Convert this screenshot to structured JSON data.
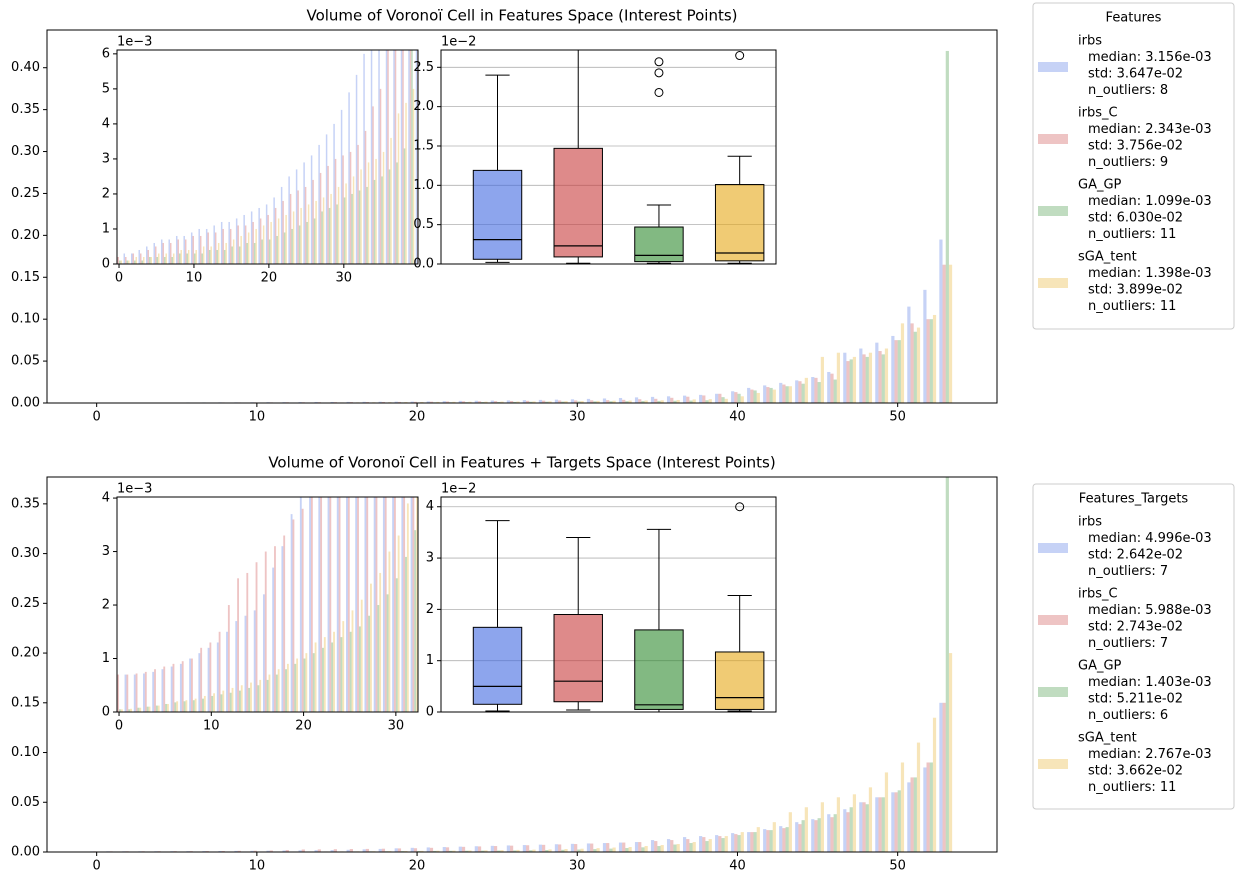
{
  "chart_data": [
    {
      "type": "bar",
      "title": "Volume of Voronoï Cell in Features Space (Interest Points)",
      "x": [
        0,
        1,
        2,
        3,
        4,
        5,
        6,
        7,
        8,
        9,
        10,
        11,
        12,
        13,
        14,
        15,
        16,
        17,
        18,
        19,
        20,
        21,
        22,
        23,
        24,
        25,
        26,
        27,
        28,
        29,
        30,
        31,
        32,
        33,
        34,
        35,
        36,
        37,
        38,
        39,
        40,
        41,
        42,
        43,
        44,
        45,
        46,
        47,
        48,
        49,
        50,
        51,
        52,
        53
      ],
      "xlim": [
        -3.1,
        56.2
      ],
      "xticks": [
        0,
        10,
        20,
        30,
        40,
        50
      ],
      "ylim": [
        0,
        0.445
      ],
      "yticks": [
        {
          "value": 0,
          "label": "0.00"
        },
        {
          "value": 0.05,
          "label": "0.05"
        },
        {
          "value": 0.1,
          "label": "0.10"
        },
        {
          "value": 0.15,
          "label": "0.15"
        },
        {
          "value": 0.2,
          "label": "0.20"
        },
        {
          "value": 0.25,
          "label": "0.25"
        },
        {
          "value": 0.3,
          "label": "0.30"
        },
        {
          "value": 0.35,
          "label": "0.35"
        },
        {
          "value": 0.4,
          "label": "0.40"
        }
      ],
      "bar_alpha": 0.3,
      "box_alpha": 0.6,
      "legend": {
        "title": "Features",
        "position": "outside right"
      },
      "series": [
        {
          "name": "irbs",
          "color": "#4169e1",
          "legend_lines": [
            "median: 3.156e-03",
            "std: 3.647e-02",
            "n_outliers: 8"
          ],
          "values": [
            0.0002,
            0.0003,
            0.0003,
            0.0004,
            0.0005,
            0.0006,
            0.0007,
            0.0007,
            0.0008,
            0.0008,
            0.0009,
            0.001,
            0.001,
            0.0011,
            0.0012,
            0.0012,
            0.0013,
            0.0014,
            0.0015,
            0.0016,
            0.0017,
            0.0019,
            0.0022,
            0.0025,
            0.0027,
            0.0029,
            0.0031,
            0.0034,
            0.0037,
            0.004,
            0.0044,
            0.0049,
            0.0054,
            0.006,
            0.0067,
            0.0073,
            0.008,
            0.0088,
            0.0097,
            0.011,
            0.014,
            0.018,
            0.021,
            0.024,
            0.027,
            0.031,
            0.037,
            0.06,
            0.065,
            0.072,
            0.08,
            0.115,
            0.135,
            0.195
          ]
        },
        {
          "name": "irbs_C",
          "color": "#c83c3c",
          "legend_lines": [
            "median: 2.343e-03",
            "std: 3.756e-02",
            "n_outliers: 9"
          ],
          "values": [
            0.0002,
            0.0002,
            0.0003,
            0.0003,
            0.0004,
            0.0005,
            0.0006,
            0.0006,
            0.0007,
            0.0007,
            0.0008,
            0.0008,
            0.0009,
            0.0009,
            0.001,
            0.001,
            0.0011,
            0.0011,
            0.0012,
            0.0013,
            0.0014,
            0.0016,
            0.0018,
            0.002,
            0.0021,
            0.0022,
            0.0024,
            0.0026,
            0.0028,
            0.003,
            0.0031,
            0.0032,
            0.0034,
            0.0038,
            0.0045,
            0.005,
            0.0062,
            0.0075,
            0.009,
            0.011,
            0.013,
            0.016,
            0.019,
            0.022,
            0.026,
            0.03,
            0.035,
            0.05,
            0.058,
            0.062,
            0.075,
            0.095,
            0.1,
            0.165
          ]
        },
        {
          "name": "GA_GP",
          "color": "#2e8b2e",
          "legend_lines": [
            "median: 1.099e-03",
            "std: 6.030e-02",
            "n_outliers: 11"
          ],
          "values": [
            0.0001,
            0.0001,
            0.0001,
            0.0001,
            0.0002,
            0.0002,
            0.0002,
            0.0002,
            0.0003,
            0.0003,
            0.0003,
            0.0003,
            0.0004,
            0.0004,
            0.0004,
            0.0005,
            0.0005,
            0.0006,
            0.0006,
            0.0007,
            0.0007,
            0.0008,
            0.0009,
            0.001,
            0.0011,
            0.0012,
            0.0013,
            0.0015,
            0.0016,
            0.0017,
            0.0019,
            0.002,
            0.0021,
            0.0022,
            0.0024,
            0.0025,
            0.0027,
            0.0029,
            0.0033,
            0.007,
            0.011,
            0.015,
            0.018,
            0.02,
            0.023,
            0.025,
            0.028,
            0.052,
            0.055,
            0.058,
            0.075,
            0.085,
            0.1,
            0.42
          ]
        },
        {
          "name": "sGA_tent",
          "color": "#e6a817",
          "legend_lines": [
            "median: 1.398e-03",
            "std: 3.899e-02",
            "n_outliers: 11"
          ],
          "values": [
            0.0001,
            0.0001,
            0.0002,
            0.0002,
            0.0002,
            0.0003,
            0.0003,
            0.0003,
            0.0004,
            0.0004,
            0.0004,
            0.0005,
            0.0005,
            0.0006,
            0.0006,
            0.0007,
            0.0008,
            0.0009,
            0.001,
            0.0011,
            0.0012,
            0.0013,
            0.0014,
            0.0015,
            0.0016,
            0.0017,
            0.0018,
            0.0019,
            0.002,
            0.0022,
            0.0023,
            0.0025,
            0.0027,
            0.0029,
            0.003,
            0.0032,
            0.0036,
            0.0043,
            0.0046,
            0.005,
            0.008,
            0.012,
            0.016,
            0.02,
            0.03,
            0.055,
            0.06,
            0.055,
            0.06,
            0.065,
            0.095,
            0.09,
            0.105,
            0.165
          ]
        }
      ],
      "insets": [
        {
          "type": "bar",
          "xlim": [
            -0.27,
            39.9
          ],
          "xticks": [
            0,
            10,
            20,
            30
          ],
          "ylim": [
            0,
            0.00611
          ],
          "offset_label": "1e−3",
          "yticks": [
            0,
            {
              "value": 0.001,
              "label": "1"
            },
            {
              "value": 0.002,
              "label": "2"
            },
            {
              "value": 0.003,
              "label": "3"
            },
            {
              "value": 0.004,
              "label": "4"
            },
            {
              "value": 0.005,
              "label": "5"
            },
            {
              "value": 0.006,
              "label": "6"
            }
          ]
        },
        {
          "type": "box",
          "ylim": [
            0,
            0.0272
          ],
          "offset_label": "1e−2",
          "grid": true,
          "yticks": [
            {
              "value": 0,
              "label": "0.0"
            },
            {
              "value": 0.005,
              "label": "0.5"
            },
            {
              "value": 0.01,
              "label": "1.0"
            },
            {
              "value": 0.015,
              "label": "1.5"
            },
            {
              "value": 0.02,
              "label": "2.0"
            },
            {
              "value": 0.025,
              "label": "2.5"
            }
          ],
          "boxes": [
            {
              "whislo": 0.0002,
              "q1": 0.0006,
              "med": 0.0031,
              "q3": 0.0119,
              "whishi": 0.024
            },
            {
              "whislo": 0.0001,
              "q1": 0.0009,
              "med": 0.0023,
              "q3": 0.0147,
              "whishi": 0.03
            },
            {
              "whislo": 0.0001,
              "q1": 0.0003,
              "med": 0.0011,
              "q3": 0.0047,
              "whishi": 0.0075,
              "fliers": [
                0.0218,
                0.0243,
                0.0257
              ]
            },
            {
              "whislo": 0.0001,
              "q1": 0.0004,
              "med": 0.0014,
              "q3": 0.0101,
              "whishi": 0.0137,
              "fliers": [
                0.0265
              ]
            }
          ]
        }
      ]
    },
    {
      "type": "bar",
      "title": "Volume of Voronoï Cell in Features + Targets Space (Interest Points)",
      "x": [
        0,
        1,
        2,
        3,
        4,
        5,
        6,
        7,
        8,
        9,
        10,
        11,
        12,
        13,
        14,
        15,
        16,
        17,
        18,
        19,
        20,
        21,
        22,
        23,
        24,
        25,
        26,
        27,
        28,
        29,
        30,
        31,
        32,
        33,
        34,
        35,
        36,
        37,
        38,
        39,
        40,
        41,
        42,
        43,
        44,
        45,
        46,
        47,
        48,
        49,
        50,
        51,
        52,
        53
      ],
      "xlim": [
        -3.1,
        56.2
      ],
      "xticks": [
        0,
        10,
        20,
        30,
        40,
        50
      ],
      "ylim": [
        0,
        0.377
      ],
      "yticks": [
        {
          "value": 0,
          "label": "0.00"
        },
        {
          "value": 0.05,
          "label": "0.05"
        },
        {
          "value": 0.1,
          "label": "0.10"
        },
        {
          "value": 0.15,
          "label": "0.15"
        },
        {
          "value": 0.2,
          "label": "0.20"
        },
        {
          "value": 0.25,
          "label": "0.25"
        },
        {
          "value": 0.3,
          "label": "0.30"
        },
        {
          "value": 0.35,
          "label": "0.35"
        }
      ],
      "bar_alpha": 0.3,
      "box_alpha": 0.6,
      "legend": {
        "title": "Features_Targets",
        "position": "outside right"
      },
      "series": [
        {
          "name": "irbs",
          "color": "#4169e1",
          "legend_lines": [
            "median: 4.996e-03",
            "std: 2.642e-02",
            "n_outliers: 7"
          ],
          "values": [
            0.00065,
            0.0007,
            0.0007,
            0.00072,
            0.00075,
            0.0008,
            0.00085,
            0.0009,
            0.001,
            0.0011,
            0.0012,
            0.0013,
            0.0015,
            0.0017,
            0.0018,
            0.0019,
            0.0022,
            0.0027,
            0.0031,
            0.0037,
            0.0042,
            0.0046,
            0.005,
            0.0054,
            0.0058,
            0.0062,
            0.0066,
            0.007,
            0.0074,
            0.0078,
            0.0082,
            0.0086,
            0.009,
            0.0095,
            0.01,
            0.012,
            0.013,
            0.015,
            0.016,
            0.017,
            0.019,
            0.02,
            0.023,
            0.026,
            0.03,
            0.033,
            0.038,
            0.043,
            0.05,
            0.055,
            0.06,
            0.07,
            0.085,
            0.15
          ]
        },
        {
          "name": "irbs_C",
          "color": "#c83c3c",
          "legend_lines": [
            "median: 5.988e-03",
            "std: 2.743e-02",
            "n_outliers: 7"
          ],
          "values": [
            0.0007,
            0.0007,
            0.00072,
            0.00075,
            0.0008,
            0.00085,
            0.0009,
            0.00095,
            0.001,
            0.0012,
            0.0013,
            0.0015,
            0.002,
            0.0025,
            0.0026,
            0.0028,
            0.003,
            0.0031,
            0.0033,
            0.0036,
            0.0038,
            0.0042,
            0.0047,
            0.0052,
            0.0056,
            0.006,
            0.0064,
            0.0068,
            0.0072,
            0.0076,
            0.008,
            0.0085,
            0.009,
            0.0095,
            0.01,
            0.011,
            0.012,
            0.013,
            0.015,
            0.016,
            0.018,
            0.02,
            0.022,
            0.024,
            0.028,
            0.032,
            0.035,
            0.04,
            0.05,
            0.055,
            0.06,
            0.075,
            0.09,
            0.15
          ]
        },
        {
          "name": "GA_GP",
          "color": "#2e8b2e",
          "legend_lines": [
            "median: 1.403e-03",
            "std: 5.211e-02",
            "n_outliers: 6"
          ],
          "values": [
            5e-05,
            5e-05,
            8e-05,
            0.0001,
            0.00012,
            0.00015,
            0.00018,
            0.0002,
            0.00022,
            0.00025,
            0.0003,
            0.00033,
            0.00036,
            0.0004,
            0.00045,
            0.0005,
            0.0006,
            0.0007,
            0.0008,
            0.0009,
            0.001,
            0.0011,
            0.0012,
            0.0013,
            0.0014,
            0.0015,
            0.0016,
            0.0018,
            0.002,
            0.0022,
            0.0025,
            0.0029,
            0.0034,
            0.004,
            0.0047,
            0.006,
            0.0075,
            0.009,
            0.011,
            0.014,
            0.017,
            0.02,
            0.022,
            0.025,
            0.032,
            0.034,
            0.038,
            0.045,
            0.048,
            0.055,
            0.062,
            0.075,
            0.09,
            0.38
          ]
        },
        {
          "name": "sGA_tent",
          "color": "#e6a817",
          "legend_lines": [
            "median: 2.767e-03",
            "std: 3.662e-02",
            "n_outliers: 11"
          ],
          "values": [
            5e-05,
            6e-05,
            8e-05,
            0.0001,
            0.00012,
            0.00015,
            0.0002,
            0.00022,
            0.00025,
            0.0003,
            0.00035,
            0.0004,
            0.00045,
            0.0005,
            0.00055,
            0.0006,
            0.0007,
            0.0008,
            0.0009,
            0.001,
            0.0011,
            0.0013,
            0.0014,
            0.0015,
            0.0017,
            0.0019,
            0.0021,
            0.0024,
            0.0026,
            0.003,
            0.0033,
            0.0039,
            0.0045,
            0.005,
            0.006,
            0.007,
            0.008,
            0.01,
            0.013,
            0.016,
            0.02,
            0.025,
            0.03,
            0.04,
            0.045,
            0.05,
            0.055,
            0.058,
            0.065,
            0.08,
            0.09,
            0.11,
            0.135,
            0.2
          ]
        }
      ],
      "insets": [
        {
          "type": "bar",
          "xlim": [
            -0.22,
            32.4
          ],
          "xticks": [
            0,
            10,
            20,
            30
          ],
          "ylim": [
            0,
            0.00402
          ],
          "offset_label": "1e−3",
          "yticks": [
            0,
            {
              "value": 0.001,
              "label": "1"
            },
            {
              "value": 0.002,
              "label": "2"
            },
            {
              "value": 0.003,
              "label": "3"
            },
            {
              "value": 0.004,
              "label": "4"
            }
          ]
        },
        {
          "type": "box",
          "ylim": [
            0,
            0.0419
          ],
          "offset_label": "1e−2",
          "grid": true,
          "yticks": [
            0,
            {
              "value": 0.01,
              "label": "1"
            },
            {
              "value": 0.02,
              "label": "2"
            },
            {
              "value": 0.03,
              "label": "3"
            },
            {
              "value": 0.04,
              "label": "4"
            }
          ],
          "boxes": [
            {
              "whislo": 0.0002,
              "q1": 0.0015,
              "med": 0.005,
              "q3": 0.0165,
              "whishi": 0.0373
            },
            {
              "whislo": 0.0004,
              "q1": 0.002,
              "med": 0.006,
              "q3": 0.019,
              "whishi": 0.034
            },
            {
              "whislo": 0,
              "q1": 0.0005,
              "med": 0.0014,
              "q3": 0.016,
              "whishi": 0.0356
            },
            {
              "whislo": 0.0002,
              "q1": 0.0005,
              "med": 0.0028,
              "q3": 0.0117,
              "whishi": 0.0227,
              "fliers": [
                0.04
              ]
            }
          ]
        }
      ]
    }
  ]
}
